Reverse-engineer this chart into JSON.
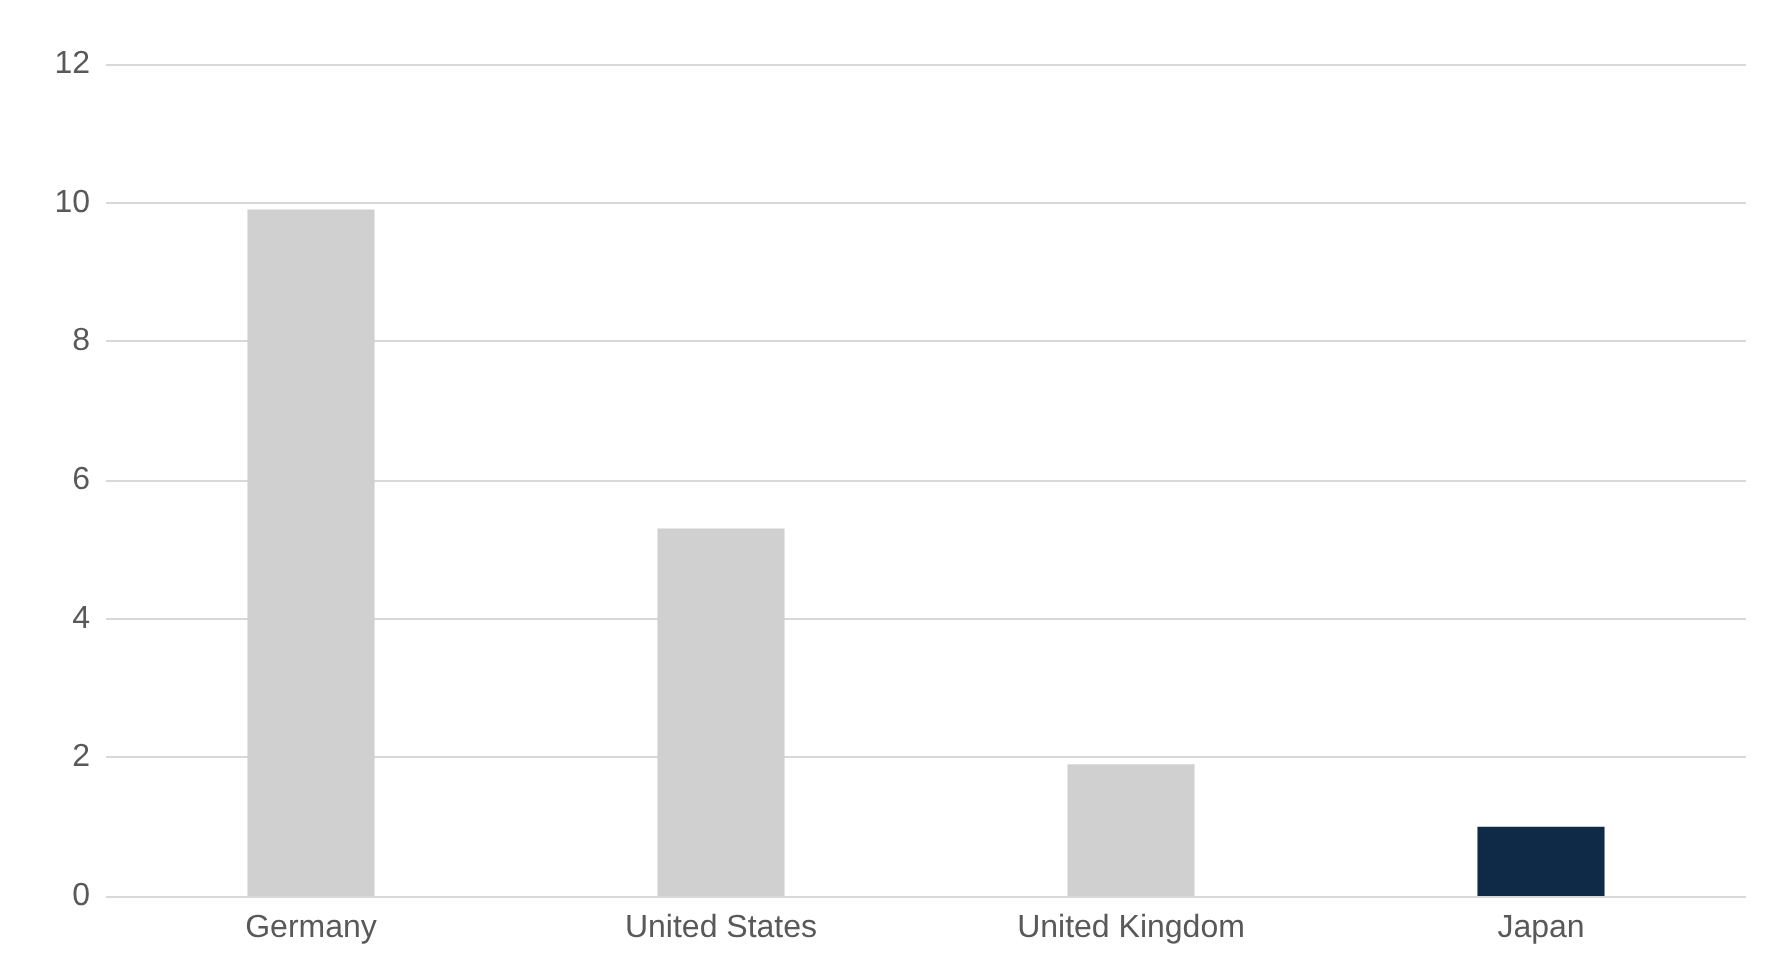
{
  "chart_data": {
    "type": "bar",
    "categories": [
      "Germany",
      "United States",
      "United Kingdom",
      "Japan"
    ],
    "values": [
      9.9,
      5.3,
      1.9,
      1.0
    ],
    "colors": [
      "#d0d0d0",
      "#d0d0d0",
      "#d0d0d0",
      "#0f2a47"
    ],
    "ylim": [
      0,
      12
    ],
    "yticks": [
      0,
      2,
      4,
      6,
      8,
      10,
      12
    ],
    "grid": "y"
  }
}
